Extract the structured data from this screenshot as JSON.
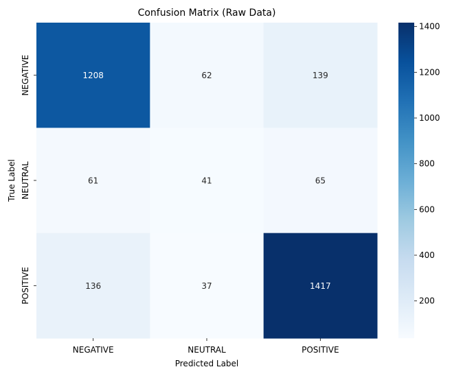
{
  "chart_data": {
    "type": "heatmap",
    "title": "Confusion Matrix (Raw Data)",
    "xlabel": "Predicted Label",
    "ylabel": "True Label",
    "x_categories": [
      "NEGATIVE",
      "NEUTRAL",
      "POSITIVE"
    ],
    "y_categories": [
      "NEGATIVE",
      "NEUTRAL",
      "POSITIVE"
    ],
    "values": [
      [
        1208,
        62,
        139
      ],
      [
        61,
        41,
        65
      ],
      [
        136,
        37,
        1417
      ]
    ],
    "colormap": "Blues",
    "vmin": 37,
    "vmax": 1417,
    "colorbar_ticks": [
      200,
      400,
      600,
      800,
      1000,
      1200,
      1400
    ],
    "grid": false
  }
}
